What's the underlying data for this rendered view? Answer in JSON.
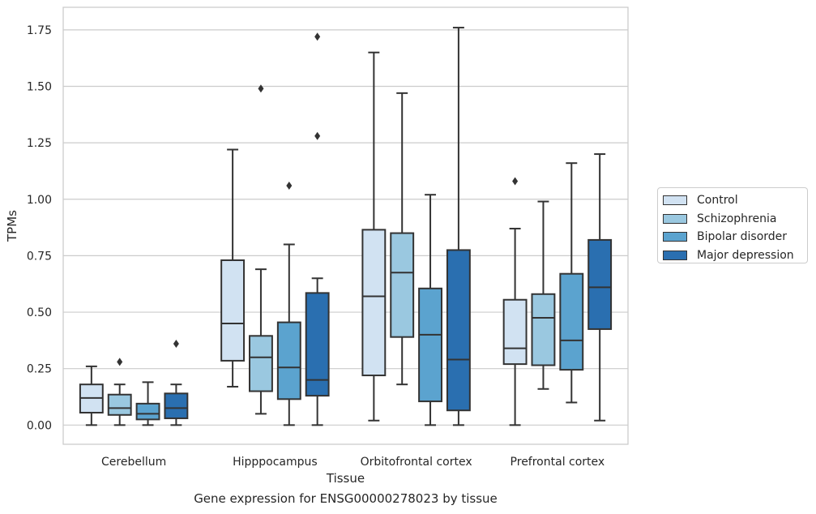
{
  "chart_data": {
    "type": "box",
    "xlabel": "Tissue",
    "ylabel": "TPMs",
    "ylim": [
      -0.085,
      1.85
    ],
    "yticks": [
      0.0,
      0.25,
      0.5,
      0.75,
      1.0,
      1.25,
      1.5,
      1.75
    ],
    "ytick_labels": [
      "0.00",
      "0.25",
      "0.50",
      "0.75",
      "1.00",
      "1.25",
      "1.50",
      "1.75"
    ],
    "grid": "horizontal",
    "legend_position": "right",
    "categories": [
      "Cerebellum",
      "Hipppocampus",
      "Orbitofrontal cortex",
      "Prefrontal cortex"
    ],
    "series": [
      {
        "name": "Control",
        "color": "#d1e2f2",
        "boxes": [
          {
            "min": 0.0,
            "q1": 0.055,
            "median": 0.12,
            "q3": 0.18,
            "max": 0.26,
            "outliers": []
          },
          {
            "min": 0.17,
            "q1": 0.285,
            "median": 0.45,
            "q3": 0.73,
            "max": 1.22,
            "outliers": []
          },
          {
            "min": 0.02,
            "q1": 0.22,
            "median": 0.57,
            "q3": 0.865,
            "max": 1.65,
            "outliers": []
          },
          {
            "min": 0.0,
            "q1": 0.27,
            "median": 0.34,
            "q3": 0.555,
            "max": 0.87,
            "outliers": [
              1.08
            ]
          }
        ]
      },
      {
        "name": "Schizophrenia",
        "color": "#9ac8e0",
        "boxes": [
          {
            "min": 0.0,
            "q1": 0.045,
            "median": 0.075,
            "q3": 0.135,
            "max": 0.18,
            "outliers": [
              0.28
            ]
          },
          {
            "min": 0.05,
            "q1": 0.15,
            "median": 0.3,
            "q3": 0.395,
            "max": 0.69,
            "outliers": [
              1.49
            ]
          },
          {
            "min": 0.18,
            "q1": 0.39,
            "median": 0.675,
            "q3": 0.85,
            "max": 1.47,
            "outliers": []
          },
          {
            "min": 0.16,
            "q1": 0.265,
            "median": 0.475,
            "q3": 0.58,
            "max": 0.99,
            "outliers": []
          }
        ]
      },
      {
        "name": "Bipolar disorder",
        "color": "#5ba3cf",
        "boxes": [
          {
            "min": 0.0,
            "q1": 0.025,
            "median": 0.05,
            "q3": 0.095,
            "max": 0.19,
            "outliers": []
          },
          {
            "min": 0.0,
            "q1": 0.115,
            "median": 0.255,
            "q3": 0.455,
            "max": 0.8,
            "outliers": [
              1.06
            ]
          },
          {
            "min": 0.0,
            "q1": 0.105,
            "median": 0.4,
            "q3": 0.605,
            "max": 1.02,
            "outliers": []
          },
          {
            "min": 0.1,
            "q1": 0.245,
            "median": 0.375,
            "q3": 0.67,
            "max": 1.16,
            "outliers": []
          }
        ]
      },
      {
        "name": "Major depression",
        "color": "#2a6fb0",
        "boxes": [
          {
            "min": 0.0,
            "q1": 0.03,
            "median": 0.075,
            "q3": 0.14,
            "max": 0.18,
            "outliers": [
              0.36
            ]
          },
          {
            "min": 0.0,
            "q1": 0.13,
            "median": 0.2,
            "q3": 0.585,
            "max": 0.65,
            "outliers": [
              1.28,
              1.72
            ]
          },
          {
            "min": 0.0,
            "q1": 0.065,
            "median": 0.29,
            "q3": 0.775,
            "max": 1.76,
            "outliers": []
          },
          {
            "min": 0.02,
            "q1": 0.425,
            "median": 0.61,
            "q3": 0.82,
            "max": 1.2,
            "outliers": []
          }
        ]
      }
    ]
  },
  "caption": "Gene expression for ENSG00000278023 by tissue"
}
